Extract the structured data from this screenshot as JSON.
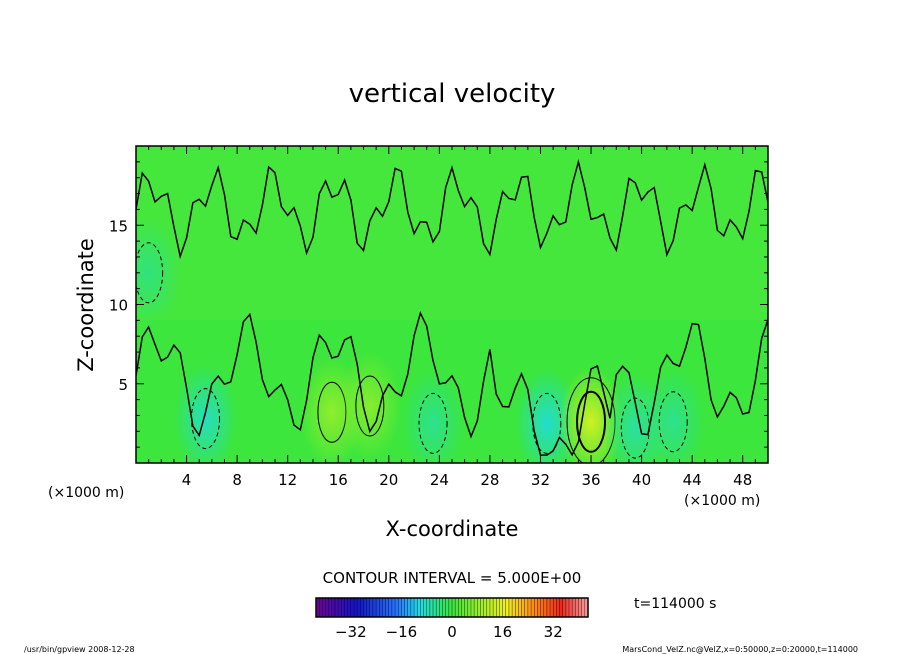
{
  "chart_data": {
    "type": "heatmap",
    "title": "vertical velocity",
    "xlabel": "X-coordinate",
    "ylabel": "Z-coordinate",
    "x_units": "(×1000 m)",
    "y_units": "(×1000 m)",
    "xlim": [
      0,
      50
    ],
    "ylim": [
      0,
      20
    ],
    "x_ticks": [
      4,
      8,
      12,
      16,
      20,
      24,
      28,
      32,
      36,
      40,
      44,
      48
    ],
    "y_ticks": [
      5,
      10,
      15
    ],
    "contour_interval_label": "CONTOUR INTERVAL = 5.000E+00",
    "colorbar": {
      "range": [
        -43,
        43
      ],
      "ticks": [
        -32,
        -16,
        0,
        16,
        32
      ]
    },
    "time_label": "t=114000 s",
    "features": [
      {
        "x": 5.5,
        "z": 2.8,
        "value": -8
      },
      {
        "x": 15.5,
        "z": 3.2,
        "value": 8
      },
      {
        "x": 18.5,
        "z": 3.6,
        "value": 7
      },
      {
        "x": 23.5,
        "z": 2.5,
        "value": -5
      },
      {
        "x": 32.5,
        "z": 2.5,
        "value": -9
      },
      {
        "x": 36,
        "z": 2.6,
        "value": 14
      },
      {
        "x": 39.5,
        "z": 2.2,
        "value": -6
      },
      {
        "x": 42.5,
        "z": 2.6,
        "value": -5
      },
      {
        "x": 1,
        "z": 12,
        "value": -4
      }
    ],
    "background_value": 0
  },
  "footer": {
    "left": "/usr/bin/gpview  2008-12-28",
    "right": "MarsCond_VelZ.nc@VelZ,x=0:50000,z=0:20000,t=114000"
  }
}
